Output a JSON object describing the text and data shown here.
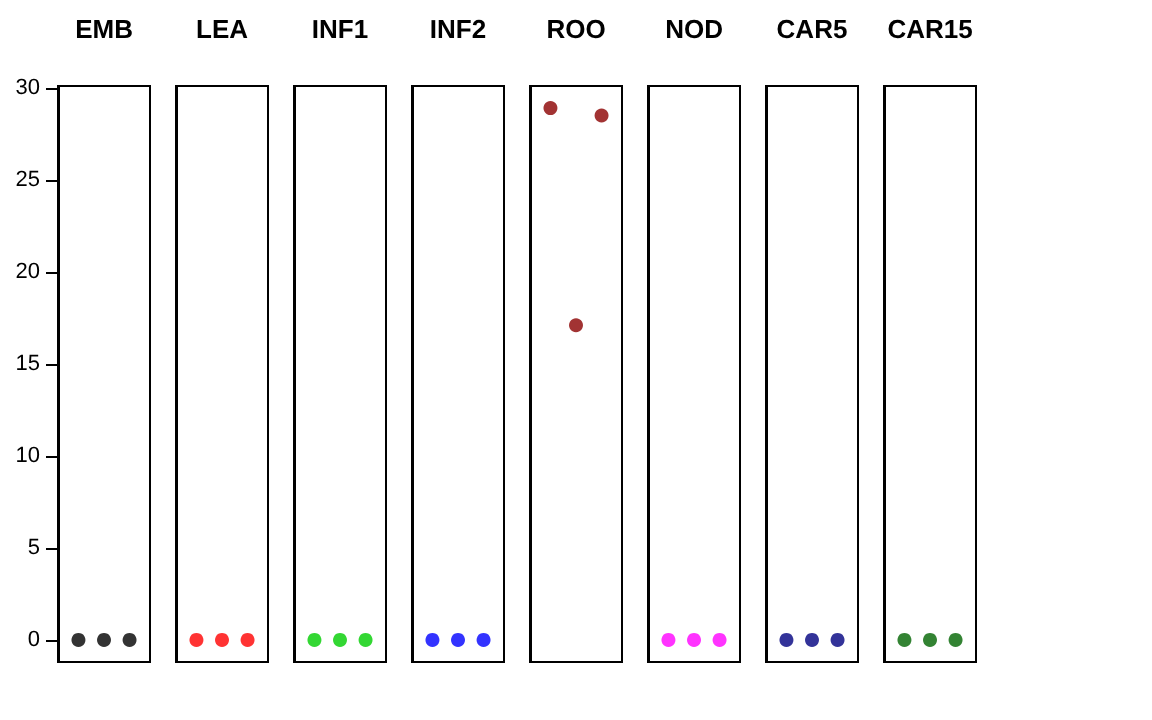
{
  "chart_data": {
    "type": "scatter",
    "categories": [
      "EMB",
      "LEA",
      "INF1",
      "INF2",
      "ROO",
      "NOD",
      "CAR5",
      "CAR15"
    ],
    "series": [
      {
        "values": [
          0,
          0,
          0,
          0,
          28.9,
          0,
          0,
          0
        ],
        "colors": [
          "#000000",
          "#ff0000",
          "#00cd00",
          "#0000ff",
          "#8b0000",
          "#ff00ff",
          "#000080",
          "#006400"
        ]
      },
      {
        "values": [
          0,
          0,
          0,
          0,
          17.1,
          0,
          0,
          0
        ],
        "colors": [
          "#000000",
          "#ff0000",
          "#00cd00",
          "#0000ff",
          "#8b0000",
          "#ff00ff",
          "#000080",
          "#006400"
        ]
      },
      {
        "values": [
          0,
          0,
          0,
          0,
          28.5,
          0,
          0,
          0
        ],
        "colors": [
          "#000000",
          "#ff0000",
          "#00cd00",
          "#0000ff",
          "#8b0000",
          "#ff00ff",
          "#000080",
          "#006400"
        ]
      }
    ],
    "ylim": [
      -1.2,
      30.1
    ],
    "yticks": [
      0,
      5,
      10,
      15,
      20,
      25,
      30
    ],
    "marker": "circle",
    "grid": false
  }
}
